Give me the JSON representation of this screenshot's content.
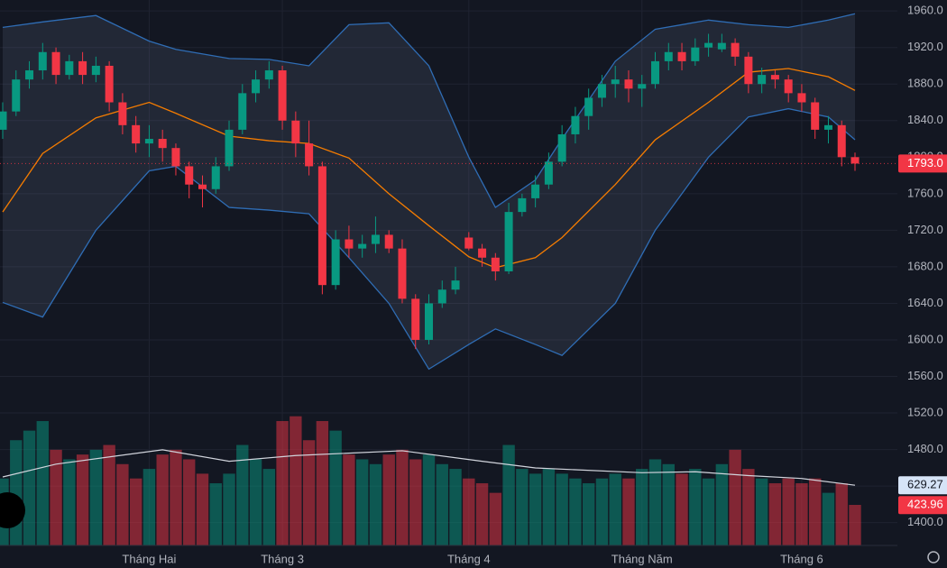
{
  "chart_data": {
    "type": "candlestick",
    "categories": [
      null,
      null,
      null,
      null,
      null,
      null,
      null,
      null,
      null,
      null,
      null,
      "Tháng Hai",
      null,
      null,
      null,
      null,
      null,
      null,
      null,
      null,
      null,
      "Tháng 3",
      null,
      null,
      null,
      null,
      null,
      null,
      null,
      null,
      null,
      null,
      null,
      null,
      null,
      "Tháng 4",
      null,
      null,
      null,
      null,
      null,
      null,
      null,
      null,
      null,
      null,
      null,
      null,
      "Tháng Năm",
      null,
      null,
      null,
      null,
      null,
      null,
      null,
      null,
      null,
      null,
      null,
      "Tháng 6",
      null,
      null,
      null,
      null
    ],
    "candles": {
      "open": [
        1830,
        1850,
        1885,
        1895,
        1915,
        1890,
        1905,
        1890,
        1900,
        1860,
        1835,
        1815,
        1820,
        1810,
        1790,
        1770,
        1765,
        1790,
        1830,
        1870,
        1885,
        1895,
        1840,
        1815,
        1790,
        1660,
        1710,
        1700,
        1705,
        1715,
        1700,
        1645,
        1600,
        1640,
        1655,
        1712,
        1700,
        1690,
        1675,
        1740,
        1755,
        1770,
        1795,
        1825,
        1845,
        1865,
        1880,
        1885,
        1875,
        1880,
        1905,
        1915,
        1905,
        1920,
        1918,
        1925,
        1910,
        1880,
        1890,
        1885,
        1870,
        1860,
        1830,
        1835,
        1800
      ],
      "high": [
        1860,
        1895,
        1905,
        1925,
        1920,
        1912,
        1915,
        1910,
        1905,
        1870,
        1845,
        1835,
        1830,
        1815,
        1795,
        1780,
        1800,
        1840,
        1880,
        1895,
        1905,
        1900,
        1850,
        1840,
        1795,
        1720,
        1725,
        1715,
        1735,
        1720,
        1710,
        1650,
        1650,
        1665,
        1680,
        1718,
        1705,
        1695,
        1750,
        1760,
        1780,
        1805,
        1835,
        1855,
        1875,
        1890,
        1900,
        1895,
        1890,
        1915,
        1925,
        1925,
        1930,
        1935,
        1935,
        1930,
        1915,
        1898,
        1895,
        1890,
        1880,
        1865,
        1845,
        1840,
        1805
      ],
      "low": [
        1820,
        1845,
        1875,
        1885,
        1880,
        1885,
        1880,
        1882,
        1850,
        1825,
        1805,
        1800,
        1795,
        1780,
        1755,
        1745,
        1760,
        1785,
        1825,
        1860,
        1875,
        1830,
        1800,
        1780,
        1650,
        1655,
        1690,
        1690,
        1695,
        1695,
        1640,
        1590,
        1595,
        1635,
        1650,
        1698,
        1680,
        1665,
        1672,
        1735,
        1745,
        1765,
        1790,
        1815,
        1830,
        1855,
        1865,
        1860,
        1855,
        1875,
        1895,
        1895,
        1900,
        1910,
        1915,
        1900,
        1870,
        1870,
        1875,
        1860,
        1850,
        1820,
        1815,
        1790,
        1785
      ],
      "close": [
        1850,
        1885,
        1895,
        1915,
        1890,
        1905,
        1890,
        1900,
        1860,
        1835,
        1815,
        1820,
        1810,
        1790,
        1770,
        1765,
        1790,
        1830,
        1870,
        1885,
        1895,
        1840,
        1815,
        1790,
        1660,
        1710,
        1700,
        1705,
        1715,
        1700,
        1645,
        1600,
        1640,
        1655,
        1665,
        1700,
        1690,
        1675,
        1740,
        1755,
        1770,
        1795,
        1825,
        1845,
        1865,
        1880,
        1885,
        1875,
        1880,
        1905,
        1915,
        1905,
        1920,
        1925,
        1925,
        1910,
        1880,
        1890,
        1885,
        1870,
        1860,
        1830,
        1835,
        1800,
        1793
      ]
    },
    "last_close_label": "1793.0",
    "volume": [
      700,
      1100,
      1200,
      1300,
      1000,
      900,
      950,
      1000,
      1050,
      850,
      700,
      800,
      950,
      1000,
      900,
      750,
      650,
      750,
      1050,
      900,
      800,
      1300,
      1350,
      1100,
      1300,
      1200,
      950,
      900,
      850,
      950,
      1000,
      900,
      950,
      850,
      800,
      700,
      650,
      550,
      1050,
      800,
      750,
      800,
      750,
      700,
      650,
      700,
      750,
      700,
      800,
      900,
      850,
      750,
      800,
      700,
      850,
      1000,
      800,
      700,
      650,
      700,
      650,
      700,
      550,
      650,
      423.96
    ],
    "volume_lim": [
      0,
      5700
    ],
    "volume_ma": {
      "index": [
        0,
        4,
        12,
        17,
        22,
        30,
        36,
        40,
        48,
        52,
        56,
        60,
        64
      ],
      "values": [
        716,
        850,
        1000,
        880,
        940,
        990,
        880,
        810,
        760,
        770,
        730,
        700,
        629.27
      ]
    },
    "bands": {
      "index": [
        0,
        3,
        7,
        11,
        13,
        17,
        20,
        23,
        26,
        29,
        32,
        35,
        37,
        40,
        42,
        46,
        49,
        53,
        56,
        59,
        62,
        64
      ],
      "upper": [
        1942,
        1948,
        1955,
        1927,
        1918,
        1908,
        1907,
        1900,
        1945,
        1947,
        1900,
        1800,
        1745,
        1775,
        1820,
        1905,
        1940,
        1950,
        1945,
        1942,
        1950,
        1957
      ],
      "middle": [
        1740,
        1804,
        1843,
        1860,
        1848,
        1823,
        1818,
        1815,
        1799,
        1760,
        1725,
        1691,
        1679,
        1690,
        1712,
        1770,
        1819,
        1860,
        1893,
        1897,
        1888,
        1873
      ],
      "lower": [
        1641,
        1625,
        1720,
        1785,
        1790,
        1745,
        1742,
        1738,
        1690,
        1640,
        1568,
        1595,
        1612,
        1595,
        1583,
        1640,
        1720,
        1800,
        1844,
        1853,
        1844,
        1819
      ]
    },
    "up_color": "#089981",
    "down_color": "#f23645",
    "band_color": "#2f6db5",
    "middle_color": "#f57c00",
    "ylim": [
      1375,
      1972
    ],
    "yticks": [
      {
        "value": 1960,
        "label": "1960.0"
      },
      {
        "value": 1920,
        "label": "1920.0"
      },
      {
        "value": 1880,
        "label": "1880.0"
      },
      {
        "value": 1840,
        "label": "1840.0"
      },
      {
        "value": 1800,
        "label": "1800.0"
      },
      {
        "value": 1760,
        "label": "1760.0"
      },
      {
        "value": 1720,
        "label": "1720.0"
      },
      {
        "value": 1680,
        "label": "1680.0"
      },
      {
        "value": 1640,
        "label": "1640.0"
      },
      {
        "value": 1600,
        "label": "1600.0"
      },
      {
        "value": 1560,
        "label": "1560.0"
      },
      {
        "value": 1520,
        "label": "1520.0"
      },
      {
        "value": 1480,
        "label": "1480.0"
      },
      {
        "value": 1440,
        "label": "1440.0"
      },
      {
        "value": 1400,
        "label": "1400.0"
      }
    ],
    "grid": true
  }
}
